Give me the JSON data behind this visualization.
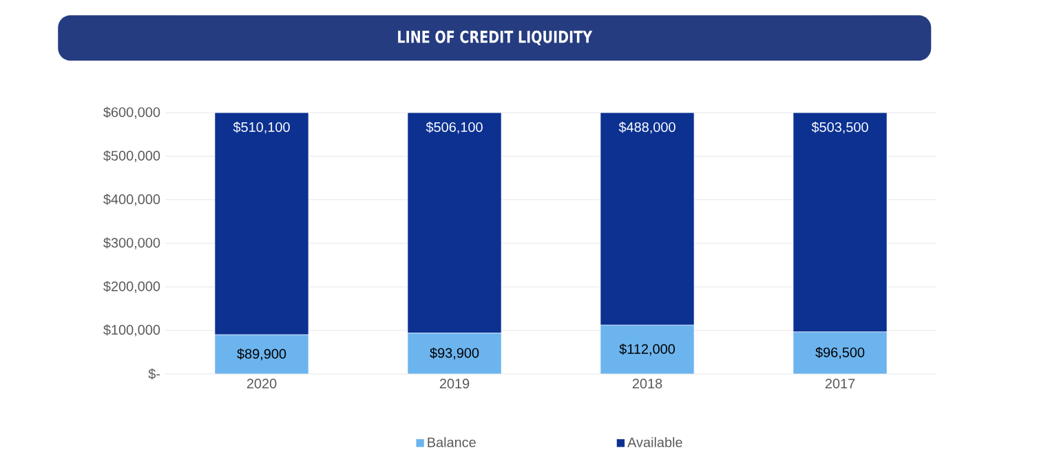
{
  "chart_data": {
    "type": "bar",
    "title": "LINE OF CREDIT LIQUIDITY",
    "stacked": true,
    "categories": [
      "2020",
      "2019",
      "2018",
      "2017"
    ],
    "series": [
      {
        "name": "Balance",
        "color": "#6cb4ee",
        "values": [
          89900,
          93900,
          112000,
          96500
        ],
        "value_labels": [
          "$89,900",
          "$93,900",
          "$112,000",
          "$96,500"
        ]
      },
      {
        "name": "Available",
        "color": "#0c3191",
        "values": [
          510100,
          506100,
          488000,
          503500
        ],
        "value_labels": [
          "$510,100",
          "$506,100",
          "$488,000",
          "$503,500"
        ]
      }
    ],
    "ylim": [
      0,
      600000
    ],
    "yticks": [
      {
        "value": 0,
        "label": "$-"
      },
      {
        "value": 100000,
        "label": "$100,000"
      },
      {
        "value": 200000,
        "label": "$200,000"
      },
      {
        "value": 300000,
        "label": "$300,000"
      },
      {
        "value": 400000,
        "label": "$400,000"
      },
      {
        "value": 500000,
        "label": "$500,000"
      },
      {
        "value": 600000,
        "label": "$600,000"
      }
    ],
    "grid": "y",
    "legend": "bottom"
  }
}
